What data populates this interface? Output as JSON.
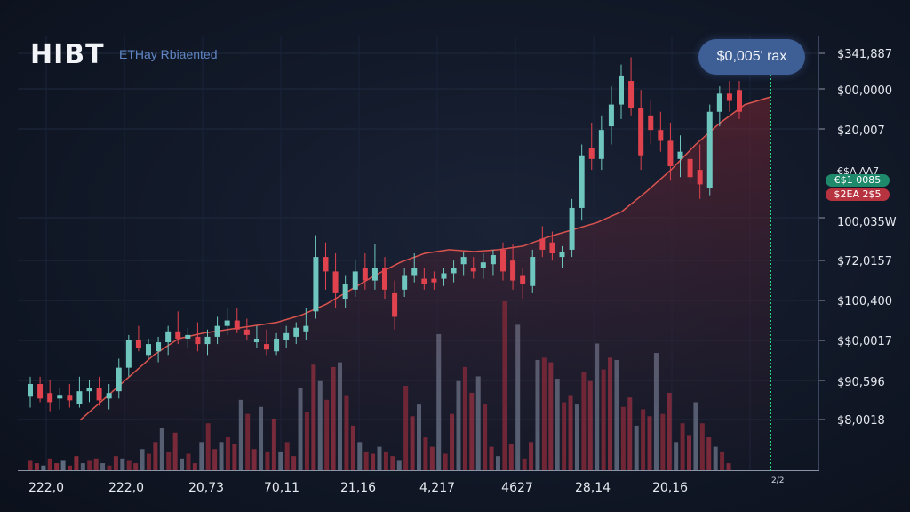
{
  "header": {
    "brand": "HIBT",
    "subtitle": "ETHay Rbiaented",
    "price_badge": "$0,005' rax"
  },
  "price_axis": {
    "labels": [
      "$341,887",
      "$00,0000",
      "$20,007",
      "100,035W",
      "$72,0157",
      "$100,400",
      "$$0,0017",
      "$90,596",
      "$8,0018"
    ],
    "tag_green": "€$1 0085",
    "tag_red": "$2EA 2$5",
    "tag_partial": "€$Λ ΛΛ7"
  },
  "x_axis": {
    "labels": [
      "222,0",
      "222,0",
      "20,73",
      "70,11",
      "21,16",
      "4,217",
      "4627",
      "28,14",
      "20,16"
    ],
    "corner": "2/2"
  },
  "colors": {
    "bull": "#6fc6bf",
    "bear": "#e0424e",
    "ma_line": "#d9534f",
    "cursor": "#2bd47a"
  },
  "chart_data": {
    "type": "candlestick",
    "candles": [
      {
        "o": 101,
        "h": 112,
        "l": 95,
        "c": 108
      },
      {
        "o": 108,
        "h": 112,
        "l": 98,
        "c": 100
      },
      {
        "o": 103,
        "h": 110,
        "l": 93,
        "c": 98
      },
      {
        "o": 100,
        "h": 106,
        "l": 94,
        "c": 102
      },
      {
        "o": 102,
        "h": 108,
        "l": 95,
        "c": 99
      },
      {
        "o": 97,
        "h": 112,
        "l": 95,
        "c": 104
      },
      {
        "o": 104,
        "h": 110,
        "l": 98,
        "c": 106
      },
      {
        "o": 106,
        "h": 112,
        "l": 96,
        "c": 99
      },
      {
        "o": 100,
        "h": 108,
        "l": 94,
        "c": 103
      },
      {
        "o": 104,
        "h": 122,
        "l": 100,
        "c": 117
      },
      {
        "o": 117,
        "h": 135,
        "l": 112,
        "c": 132
      },
      {
        "o": 132,
        "h": 140,
        "l": 126,
        "c": 128
      },
      {
        "o": 124,
        "h": 133,
        "l": 122,
        "c": 130
      },
      {
        "o": 126,
        "h": 134,
        "l": 120,
        "c": 131
      },
      {
        "o": 131,
        "h": 140,
        "l": 124,
        "c": 137
      },
      {
        "o": 137,
        "h": 148,
        "l": 130,
        "c": 133
      },
      {
        "o": 133,
        "h": 139,
        "l": 128,
        "c": 135
      },
      {
        "o": 134,
        "h": 142,
        "l": 126,
        "c": 130
      },
      {
        "o": 130,
        "h": 138,
        "l": 124,
        "c": 134
      },
      {
        "o": 134,
        "h": 145,
        "l": 130,
        "c": 140
      },
      {
        "o": 140,
        "h": 150,
        "l": 135,
        "c": 143
      },
      {
        "o": 143,
        "h": 150,
        "l": 136,
        "c": 138
      },
      {
        "o": 138,
        "h": 144,
        "l": 132,
        "c": 135
      },
      {
        "o": 131,
        "h": 140,
        "l": 128,
        "c": 133
      },
      {
        "o": 130,
        "h": 138,
        "l": 124,
        "c": 127
      },
      {
        "o": 126,
        "h": 136,
        "l": 124,
        "c": 133
      },
      {
        "o": 132,
        "h": 140,
        "l": 128,
        "c": 136
      },
      {
        "o": 134,
        "h": 142,
        "l": 130,
        "c": 139
      },
      {
        "o": 137,
        "h": 150,
        "l": 132,
        "c": 140
      },
      {
        "o": 148,
        "h": 190,
        "l": 144,
        "c": 178
      },
      {
        "o": 178,
        "h": 186,
        "l": 160,
        "c": 170
      },
      {
        "o": 170,
        "h": 180,
        "l": 150,
        "c": 158
      },
      {
        "o": 155,
        "h": 168,
        "l": 150,
        "c": 163
      },
      {
        "o": 160,
        "h": 176,
        "l": 156,
        "c": 170
      },
      {
        "o": 172,
        "h": 180,
        "l": 160,
        "c": 165
      },
      {
        "o": 165,
        "h": 185,
        "l": 160,
        "c": 172
      },
      {
        "o": 172,
        "h": 178,
        "l": 155,
        "c": 160
      },
      {
        "o": 158,
        "h": 165,
        "l": 138,
        "c": 145
      },
      {
        "o": 160,
        "h": 172,
        "l": 156,
        "c": 168
      },
      {
        "o": 168,
        "h": 180,
        "l": 164,
        "c": 172
      },
      {
        "o": 166,
        "h": 172,
        "l": 160,
        "c": 163
      },
      {
        "o": 166,
        "h": 170,
        "l": 160,
        "c": 164
      },
      {
        "o": 166,
        "h": 172,
        "l": 162,
        "c": 169
      },
      {
        "o": 169,
        "h": 176,
        "l": 164,
        "c": 172
      },
      {
        "o": 174,
        "h": 181,
        "l": 168,
        "c": 178
      },
      {
        "o": 172,
        "h": 178,
        "l": 166,
        "c": 170
      },
      {
        "o": 172,
        "h": 180,
        "l": 166,
        "c": 175
      },
      {
        "o": 174,
        "h": 182,
        "l": 168,
        "c": 179
      },
      {
        "o": 182,
        "h": 186,
        "l": 165,
        "c": 170
      },
      {
        "o": 176,
        "h": 185,
        "l": 160,
        "c": 165
      },
      {
        "o": 168,
        "h": 172,
        "l": 155,
        "c": 163
      },
      {
        "o": 162,
        "h": 182,
        "l": 158,
        "c": 178
      },
      {
        "o": 188,
        "h": 195,
        "l": 178,
        "c": 182
      },
      {
        "o": 186,
        "h": 192,
        "l": 176,
        "c": 180
      },
      {
        "o": 178,
        "h": 184,
        "l": 172,
        "c": 181
      },
      {
        "o": 182,
        "h": 210,
        "l": 178,
        "c": 205
      },
      {
        "o": 205,
        "h": 240,
        "l": 198,
        "c": 234
      },
      {
        "o": 238,
        "h": 252,
        "l": 226,
        "c": 232
      },
      {
        "o": 232,
        "h": 256,
        "l": 226,
        "c": 248
      },
      {
        "o": 250,
        "h": 272,
        "l": 240,
        "c": 262
      },
      {
        "o": 262,
        "h": 284,
        "l": 254,
        "c": 278
      },
      {
        "o": 275,
        "h": 288,
        "l": 256,
        "c": 260
      },
      {
        "o": 260,
        "h": 270,
        "l": 226,
        "c": 234
      },
      {
        "o": 256,
        "h": 264,
        "l": 240,
        "c": 248
      },
      {
        "o": 248,
        "h": 258,
        "l": 236,
        "c": 242
      },
      {
        "o": 242,
        "h": 252,
        "l": 220,
        "c": 228
      },
      {
        "o": 232,
        "h": 245,
        "l": 222,
        "c": 236
      },
      {
        "o": 232,
        "h": 240,
        "l": 218,
        "c": 222
      },
      {
        "o": 226,
        "h": 240,
        "l": 210,
        "c": 218
      },
      {
        "o": 216,
        "h": 262,
        "l": 212,
        "c": 258
      },
      {
        "o": 258,
        "h": 272,
        "l": 250,
        "c": 268
      },
      {
        "o": 268,
        "h": 275,
        "l": 258,
        "c": 264
      },
      {
        "o": 270,
        "h": 275,
        "l": 254,
        "c": 258
      }
    ],
    "volumes": [
      4,
      3,
      2,
      5,
      3,
      4,
      2,
      6,
      3,
      4,
      5,
      3,
      2,
      6,
      5,
      4,
      3,
      9,
      7,
      12,
      18,
      8,
      16,
      5,
      7,
      3,
      12,
      20,
      9,
      12,
      14,
      11,
      30,
      24,
      9,
      27,
      8,
      22,
      8,
      12,
      6,
      35,
      25,
      45,
      38,
      30,
      44,
      46,
      32,
      19,
      12,
      8,
      7,
      10,
      8,
      6,
      4,
      36,
      23,
      28,
      14,
      10,
      58,
      7,
      24,
      38,
      44,
      33,
      40,
      28,
      10,
      6,
      72,
      11,
      62,
      5,
      12,
      47,
      48,
      46,
      39,
      29,
      32,
      28,
      42,
      38,
      54,
      43,
      48,
      47,
      27,
      31,
      19,
      26,
      23,
      50,
      24,
      33,
      12,
      20,
      15,
      29,
      20,
      14,
      10,
      8,
      3
    ],
    "moving_average": [
      88,
      100,
      112,
      124,
      133,
      136,
      138,
      140,
      142,
      146,
      152,
      160,
      168,
      175,
      180,
      182,
      181,
      182,
      184,
      189,
      193,
      197,
      203,
      214,
      226,
      240,
      252,
      262,
      266
    ]
  }
}
